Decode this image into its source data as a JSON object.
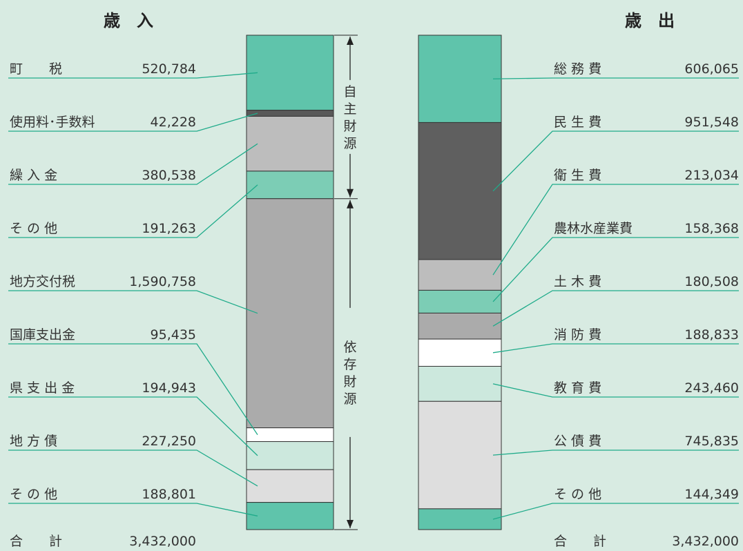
{
  "chart_data": {
    "type": "stacked-bar",
    "revenue": {
      "title": "歳　入",
      "items": [
        {
          "label": "町　　税",
          "value": 520784,
          "display": "520,784",
          "color": "#5fc4ab",
          "group": "自主財源"
        },
        {
          "label": "使用料･手数料",
          "value": 42228,
          "display": "42,228",
          "color": "#595959",
          "group": "自主財源"
        },
        {
          "label": "繰 入 金",
          "value": 380538,
          "display": "380,538",
          "color": "#bdbdbd",
          "group": "自主財源"
        },
        {
          "label": "そ の 他",
          "value": 191263,
          "display": "191,263",
          "color": "#7ccdb5",
          "group": "自主財源"
        },
        {
          "label": "地方交付税",
          "value": 1590758,
          "display": "1,590,758",
          "color": "#ababab",
          "group": "依存財源"
        },
        {
          "label": "国庫支出金",
          "value": 95435,
          "display": "95,435",
          "color": "#ffffff",
          "group": "依存財源"
        },
        {
          "label": "県 支 出 金",
          "value": 194943,
          "display": "194,943",
          "color": "#cce8dd",
          "group": "依存財源"
        },
        {
          "label": "地 方 債",
          "value": 227250,
          "display": "227,250",
          "color": "#dedede",
          "group": "依存財源"
        },
        {
          "label": "そ の 他",
          "value": 188801,
          "display": "188,801",
          "color": "#5fc4ab",
          "group": "依存財源"
        }
      ],
      "total_label": "合　　計",
      "total": "3,432,000",
      "groups": [
        "自主財源",
        "依存財源"
      ]
    },
    "expenditure": {
      "title": "歳　出",
      "items": [
        {
          "label": "総 務 費",
          "value": 606065,
          "display": "606,065",
          "color": "#5fc4ab"
        },
        {
          "label": "民 生 費",
          "value": 951548,
          "display": "951,548",
          "color": "#5f5f5f"
        },
        {
          "label": "衛 生 費",
          "value": 213034,
          "display": "213,034",
          "color": "#bdbdbd"
        },
        {
          "label": "農林水産業費",
          "value": 158368,
          "display": "158,368",
          "color": "#7ccdb5"
        },
        {
          "label": "土 木 費",
          "value": 180508,
          "display": "180,508",
          "color": "#ababab"
        },
        {
          "label": "消 防 費",
          "value": 188833,
          "display": "188,833",
          "color": "#ffffff"
        },
        {
          "label": "教 育 費",
          "value": 243460,
          "display": "243,460",
          "color": "#cce8dd"
        },
        {
          "label": "公 債 費",
          "value": 745835,
          "display": "745,835",
          "color": "#dedede"
        },
        {
          "label": "そ の 他",
          "value": 144349,
          "display": "144,349",
          "color": "#5fc4ab"
        }
      ],
      "total_label": "合　　計",
      "total": "3,432,000"
    }
  },
  "colors": {
    "background": "#d8ebe2",
    "leader_line": "#1fab8a",
    "bar_border": "#333333"
  }
}
